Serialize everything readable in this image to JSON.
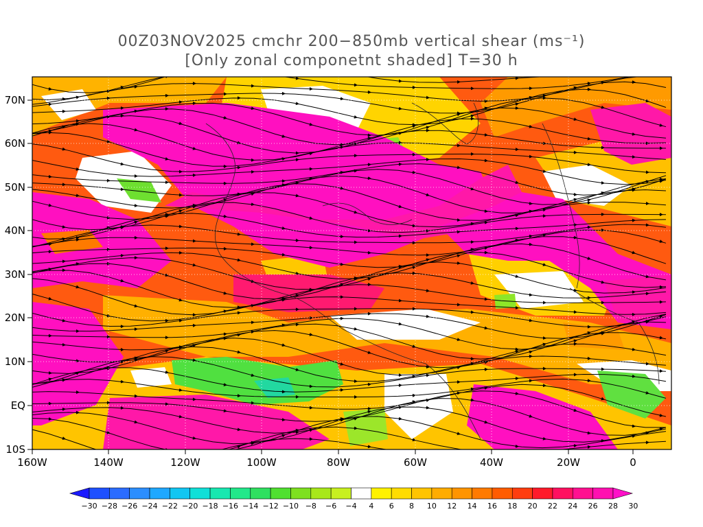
{
  "title_line1": "00Z03NOV2025 cmchr 200−850mb vertical shear (ms⁻¹)",
  "title_line2": "[Only zonal componetnt shaded] T=30 h",
  "lat_labels": [
    "70N",
    "60N",
    "50N",
    "40N",
    "30N",
    "20N",
    "10N",
    "EQ",
    "10S"
  ],
  "lon_labels": [
    "160W",
    "140W",
    "120W",
    "100W",
    "80W",
    "60W",
    "40W",
    "20W",
    "0"
  ],
  "colorbar": {
    "labels": [
      "−30",
      "−28",
      "−26",
      "−24",
      "−22",
      "−20",
      "−18",
      "−16",
      "−14",
      "−12",
      "−10",
      "−8",
      "−6",
      "−4",
      "4",
      "6",
      "8",
      "10",
      "12",
      "14",
      "16",
      "18",
      "20",
      "22",
      "24",
      "26",
      "28",
      "30"
    ],
    "colors": [
      "#1a1aff",
      "#1e50ff",
      "#2b6cff",
      "#2c8eff",
      "#1fa8ff",
      "#11c6f2",
      "#10e0d8",
      "#18e8b0",
      "#22e88a",
      "#2fe060",
      "#50e030",
      "#7ee020",
      "#a8e81a",
      "#c8f020",
      "#ffffff",
      "#fff200",
      "#ffdc00",
      "#ffc400",
      "#ffac00",
      "#ff9400",
      "#ff7a00",
      "#ff5c00",
      "#ff3d0f",
      "#ff1a2a",
      "#ff1060",
      "#ff1090",
      "#ff10b0",
      "#ff10c8"
    ]
  },
  "chart_data": {
    "type": "heatmap",
    "variable": "200-850mb vertical shear, zonal component shaded",
    "units": "ms⁻¹",
    "x_range": [
      "160W",
      "10E"
    ],
    "y_range": [
      "10S",
      "75N"
    ],
    "streamlines": true,
    "shading_levels": [
      -30,
      -28,
      -26,
      -24,
      -22,
      -20,
      -18,
      -16,
      -14,
      -12,
      -10,
      -8,
      -6,
      -4,
      4,
      6,
      8,
      10,
      12,
      14,
      16,
      18,
      20,
      22,
      24,
      26,
      28,
      30
    ]
  }
}
